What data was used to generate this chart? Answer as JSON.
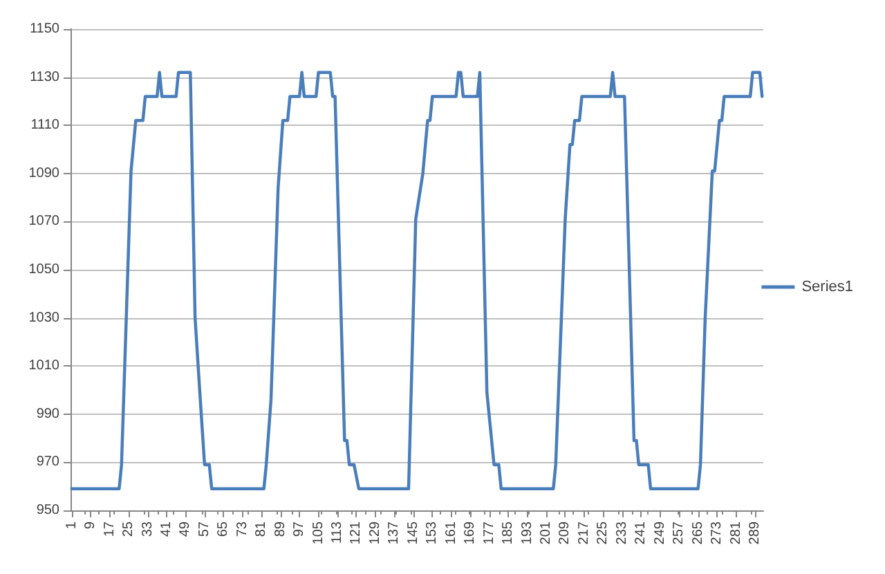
{
  "chart_data": {
    "type": "line",
    "legend": "right",
    "grid": "y",
    "marker": "none",
    "line_style": "solid",
    "xlim": [
      0.5,
      292.5
    ],
    "xticks": [
      1,
      9,
      17,
      25,
      33,
      41,
      49,
      57,
      65,
      73,
      81,
      89,
      97,
      105,
      113,
      121,
      129,
      137,
      145,
      153,
      161,
      169,
      177,
      185,
      193,
      201,
      209,
      217,
      225,
      233,
      241,
      249,
      257,
      265,
      273,
      281,
      289
    ],
    "ylim": [
      950,
      1150
    ],
    "yticks": [
      950,
      970,
      990,
      1010,
      1030,
      1050,
      1070,
      1090,
      1110,
      1130,
      1150
    ],
    "series": [
      {
        "name": "Series1",
        "color": "#4a7ebb",
        "x": [
          1,
          21,
          22,
          24,
          26,
          28,
          31,
          32,
          37,
          38,
          39,
          45,
          46,
          51,
          53,
          55,
          57,
          59,
          60,
          82,
          83,
          85,
          88,
          90,
          92,
          93,
          97,
          98,
          99,
          104,
          105,
          110,
          111,
          112,
          116,
          117,
          118,
          120,
          122,
          143,
          146,
          149,
          151,
          152,
          153,
          163,
          164,
          165,
          166,
          172,
          173,
          176,
          177,
          179,
          181,
          182,
          204,
          205,
          209,
          211,
          212,
          213,
          215,
          216,
          228,
          229,
          230,
          234,
          238,
          239,
          240,
          244,
          245,
          265,
          266,
          268,
          271,
          272,
          274,
          275,
          276,
          287,
          288,
          291,
          292
        ],
        "values": [
          959,
          959,
          969,
          1030,
          1091,
          1112,
          1112,
          1122,
          1122,
          1132,
          1122,
          1122,
          1132,
          1132,
          1030,
          999,
          969,
          969,
          959,
          959,
          969,
          996,
          1084,
          1112,
          1112,
          1122,
          1122,
          1132,
          1122,
          1122,
          1132,
          1132,
          1122,
          1122,
          979,
          979,
          969,
          969,
          959,
          959,
          1071,
          1090,
          1112,
          1112,
          1122,
          1122,
          1132,
          1132,
          1122,
          1122,
          1132,
          999,
          989,
          969,
          969,
          959,
          959,
          969,
          1071,
          1102,
          1102,
          1112,
          1112,
          1122,
          1122,
          1132,
          1122,
          1122,
          979,
          979,
          969,
          969,
          959,
          959,
          969,
          1030,
          1091,
          1091,
          1112,
          1112,
          1122,
          1122,
          1132,
          1132,
          1122
        ]
      }
    ]
  }
}
